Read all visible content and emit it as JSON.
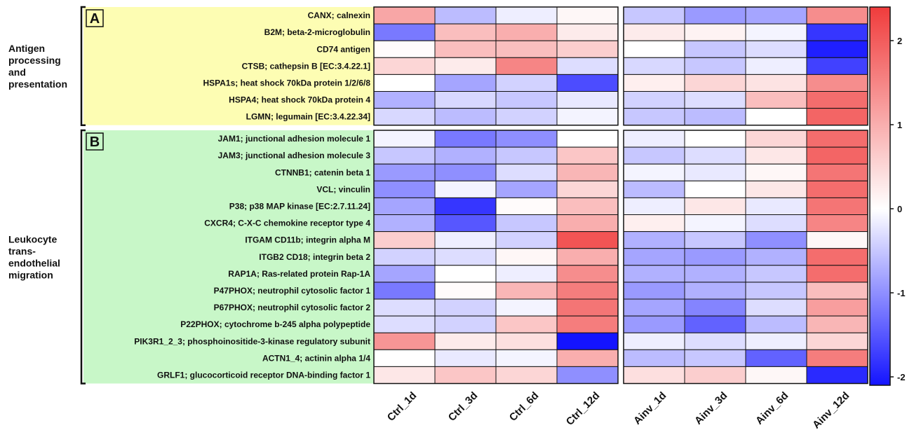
{
  "chart_data": {
    "type": "heatmap",
    "columns": [
      "Ctrl_1d",
      "Ctrl_3d",
      "Ctrl_6d",
      "Ctrl_12d",
      "Ainv_1d",
      "Ainv_3d",
      "Ainv_6d",
      "Ainv_12d"
    ],
    "groups": [
      {
        "letter": "A",
        "label_lines": [
          "Antigen",
          "processing",
          "and",
          "presentation"
        ],
        "color": "#fdfdb3",
        "rows": [
          {
            "gene": "CANX; calnexin",
            "values": [
              1.1,
              -0.6,
              -0.15,
              0.1,
              -0.5,
              -0.9,
              -0.8,
              1.4
            ]
          },
          {
            "gene": "B2M; beta-2-microglobulin",
            "values": [
              -1.2,
              0.8,
              1.0,
              0.25,
              0.25,
              0.15,
              -0.1,
              -1.8
            ]
          },
          {
            "gene": "CD74 antigen",
            "values": [
              0.05,
              0.8,
              0.8,
              0.6,
              0.0,
              -0.5,
              -0.3,
              -2.0
            ]
          },
          {
            "gene": "CTSB; cathepsin B [EC:3.4.22.1]",
            "values": [
              0.5,
              0.25,
              1.5,
              -0.3,
              -0.35,
              -0.5,
              -0.15,
              -1.7
            ]
          },
          {
            "gene": "HSPA1s; heat shock 70kDa protein 1/2/6/8",
            "values": [
              0.0,
              -0.8,
              -0.4,
              -1.6,
              0.2,
              0.5,
              0.35,
              1.4
            ]
          },
          {
            "gene": "HSPA4; heat shock 70kDa protein 4",
            "values": [
              -0.7,
              -0.35,
              -0.5,
              -0.2,
              -0.4,
              -0.3,
              0.8,
              1.8
            ]
          },
          {
            "gene": "LGMN; legumain [EC:3.4.22.34]",
            "values": [
              -0.35,
              -0.6,
              -0.4,
              -0.1,
              -0.5,
              -0.6,
              0.0,
              1.9
            ]
          }
        ]
      },
      {
        "letter": "B",
        "label_lines": [
          "Leukocyte",
          "trans-",
          "endothelial",
          "migration"
        ],
        "color": "#c8f7c8",
        "rows": [
          {
            "gene": "JAM1; junctional adhesion molecule 1",
            "values": [
              -0.1,
              -1.2,
              -1.0,
              0.0,
              -0.15,
              0.0,
              0.5,
              1.8
            ]
          },
          {
            "gene": "JAM3; junctional adhesion molecule 3",
            "values": [
              -0.5,
              -0.7,
              -0.5,
              0.7,
              -0.5,
              -0.3,
              0.3,
              1.9
            ]
          },
          {
            "gene": "CTNNB1; catenin beta 1",
            "values": [
              -0.9,
              -1.0,
              -0.3,
              0.9,
              -0.1,
              -0.2,
              0.1,
              1.7
            ]
          },
          {
            "gene": "VCL; vinculin",
            "values": [
              -1.0,
              -0.1,
              -0.8,
              0.5,
              -0.6,
              0.0,
              0.3,
              1.8
            ]
          },
          {
            "gene": "P38; p38 MAP kinase [EC:2.7.11.24]",
            "values": [
              -0.8,
              -1.8,
              0.05,
              0.8,
              -0.15,
              0.3,
              -0.2,
              1.7
            ]
          },
          {
            "gene": "CXCR4; C-X-C chemokine receptor type 4",
            "values": [
              -0.7,
              -1.5,
              -0.5,
              1.0,
              0.2,
              -0.1,
              -0.3,
              1.5
            ]
          },
          {
            "gene": "ITGAM CD11b; integrin alpha M",
            "values": [
              0.6,
              -0.15,
              -0.4,
              2.1,
              -0.7,
              -0.5,
              -1.0,
              0.1
            ]
          },
          {
            "gene": "ITGB2 CD18; integrin beta 2",
            "values": [
              -0.4,
              -0.3,
              0.1,
              1.0,
              -0.8,
              -0.9,
              -0.7,
              1.8
            ]
          },
          {
            "gene": "RAP1A; Ras-related protein Rap-1A",
            "values": [
              -0.8,
              0.0,
              -0.15,
              1.4,
              -0.7,
              -0.7,
              -0.5,
              1.8
            ]
          },
          {
            "gene": "P47PHOX; neutrophil cytosolic factor 1",
            "values": [
              -1.2,
              0.05,
              0.9,
              1.6,
              -0.9,
              -0.7,
              -0.5,
              0.8
            ]
          },
          {
            "gene": "P67PHOX; neutrophil cytosolic factor 2",
            "values": [
              -0.3,
              -0.4,
              -0.1,
              1.7,
              -0.8,
              -1.1,
              -0.3,
              1.2
            ]
          },
          {
            "gene": "P22PHOX; cytochrome b-245 alpha polypeptide",
            "values": [
              -0.3,
              -0.4,
              0.7,
              1.6,
              -0.9,
              -1.4,
              -0.6,
              0.9
            ]
          },
          {
            "gene": "PIK3R1_2_3; phosphoinositide-3-kinase regulatory subunit",
            "values": [
              1.3,
              0.25,
              0.4,
              -2.3,
              -0.15,
              -0.3,
              -0.15,
              0.5
            ]
          },
          {
            "gene": "ACTN1_4; actinin alpha 1/4",
            "values": [
              0.0,
              -0.2,
              -0.1,
              1.0,
              -0.6,
              -0.5,
              -1.4,
              1.6
            ]
          },
          {
            "gene": "GRLF1; glucocorticoid receptor DNA-binding factor 1",
            "values": [
              0.3,
              0.7,
              0.5,
              -1.0,
              0.4,
              0.6,
              0.1,
              -1.9
            ]
          }
        ]
      }
    ],
    "colorbar": {
      "min": -2.1,
      "max": 2.4,
      "ticks": [
        2,
        1,
        0,
        -1,
        -2
      ],
      "colors": {
        "low": "#1414ff",
        "mid": "#ffffff",
        "high": "#f03c3c"
      }
    }
  }
}
